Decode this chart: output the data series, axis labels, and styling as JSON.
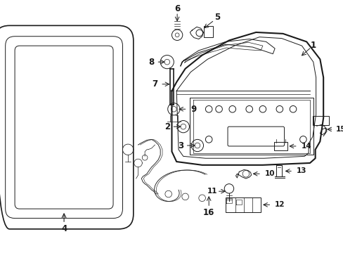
{
  "bg_color": "#ffffff",
  "line_color": "#1a1a1a",
  "lw_main": 1.2,
  "lw_thin": 0.7,
  "lw_hair": 0.5,
  "label_fontsize": 8.5
}
